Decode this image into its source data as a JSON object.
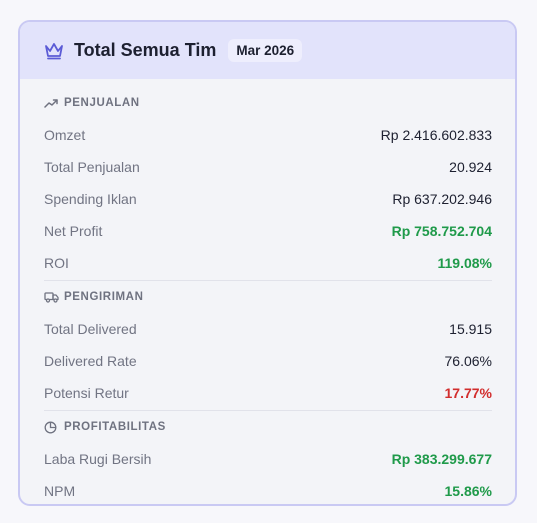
{
  "header": {
    "title": "Total Semua Tim",
    "period": "Mar 2026",
    "icon": "crown-icon",
    "accent": "#5b5bd6"
  },
  "sections": {
    "penjualan": {
      "title": "PENJUALAN",
      "icon": "trending-up-icon",
      "rows": [
        {
          "label": "Omzet",
          "value": "Rp 2.416.602.833"
        },
        {
          "label": "Total Penjualan",
          "value": "20.924"
        },
        {
          "label": "Spending Iklan",
          "value": "Rp 637.202.946"
        },
        {
          "label": "Net Profit",
          "value": "Rp 758.752.704"
        },
        {
          "label": "ROI",
          "value": "119.08%"
        }
      ]
    },
    "pengiriman": {
      "title": "PENGIRIMAN",
      "icon": "truck-icon",
      "rows": [
        {
          "label": "Total Delivered",
          "value": "15.915"
        },
        {
          "label": "Delivered Rate",
          "value": "76.06%"
        },
        {
          "label": "Potensi Retur",
          "value": "17.77%"
        }
      ]
    },
    "profitabilitas": {
      "title": "PROFITABILITAS",
      "icon": "pie-chart-icon",
      "rows": [
        {
          "label": "Laba Rugi Bersih",
          "value": "Rp 383.299.677"
        },
        {
          "label": "NPM",
          "value": "15.86%"
        }
      ]
    }
  },
  "colors": {
    "positive": "#1f9a4a",
    "negative": "#d22d2d",
    "header_bg": "#e2e3fb",
    "card_border": "#c9c9f3"
  }
}
